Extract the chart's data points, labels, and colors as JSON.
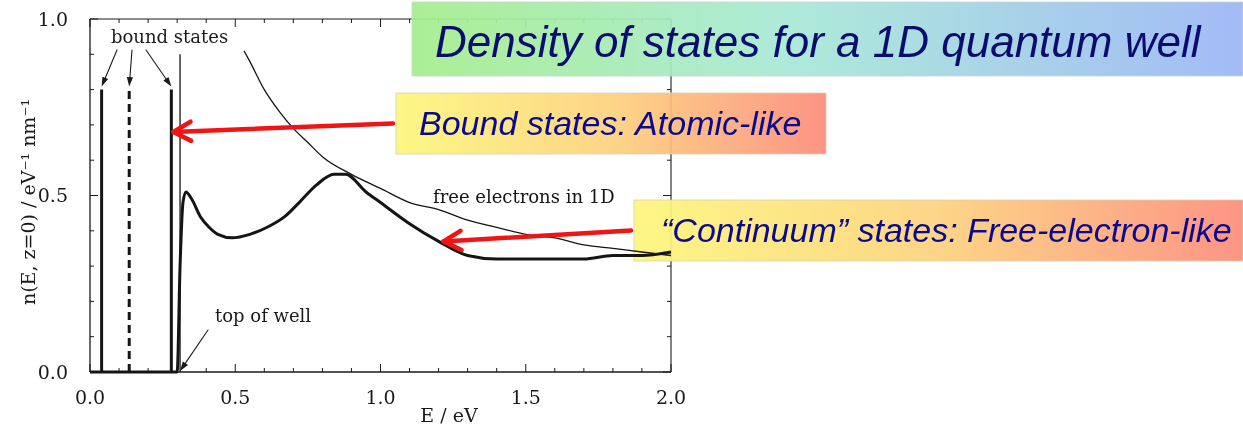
{
  "chart_data": {
    "type": "line",
    "title": "Density of states for a 1D quantum well",
    "xlabel": "E / eV",
    "ylabel": "n(E, z=0) / eV⁻¹ nm⁻¹",
    "xlim": [
      0,
      2
    ],
    "ylim": [
      0,
      1
    ],
    "xticks": [
      {
        "value": 0,
        "label": "0.0"
      },
      {
        "value": 0.1,
        "label": null
      },
      {
        "value": 0.2,
        "label": null
      },
      {
        "value": 0.3,
        "label": null
      },
      {
        "value": 0.4,
        "label": null
      },
      {
        "value": 0.5,
        "label": "0.5"
      },
      {
        "value": 0.6,
        "label": null
      },
      {
        "value": 0.7,
        "label": null
      },
      {
        "value": 0.8,
        "label": null
      },
      {
        "value": 0.9,
        "label": null
      },
      {
        "value": 1,
        "label": "1.0"
      },
      {
        "value": 1.1,
        "label": null
      },
      {
        "value": 1.2,
        "label": null
      },
      {
        "value": 1.3,
        "label": null
      },
      {
        "value": 1.4,
        "label": null
      },
      {
        "value": 1.5,
        "label": "1.5"
      },
      {
        "value": 1.6,
        "label": null
      },
      {
        "value": 1.7,
        "label": null
      },
      {
        "value": 1.8,
        "label": null
      },
      {
        "value": 1.9,
        "label": null
      },
      {
        "value": 2,
        "label": "2.0"
      }
    ],
    "yticks": [
      {
        "value": 0,
        "label": "0.0"
      },
      {
        "value": 0.1,
        "label": null
      },
      {
        "value": 0.2,
        "label": null
      },
      {
        "value": 0.3,
        "label": null
      },
      {
        "value": 0.4,
        "label": null
      },
      {
        "value": 0.5,
        "label": "0.5"
      },
      {
        "value": 0.6,
        "label": null
      },
      {
        "value": 0.7,
        "label": null
      },
      {
        "value": 0.8,
        "label": null
      },
      {
        "value": 0.9,
        "label": null
      },
      {
        "value": 1,
        "label": "1.0"
      }
    ],
    "series": [
      {
        "color": "#151515",
        "x": [
          0,
          0.3,
          0.31,
          0.32,
          0.33,
          0.35,
          0.38,
          0.41,
          0.44,
          0.49,
          0.55,
          0.61,
          0.67,
          0.72,
          0.78,
          0.84,
          0.88,
          0.95,
          1.0,
          1.1,
          1.2,
          1.3,
          1.4,
          1.5,
          1.6,
          1.7,
          1.8,
          1.9,
          2.0
        ],
        "values": [
          0,
          0,
          0.3,
          0.48,
          0.51,
          0.49,
          0.44,
          0.41,
          0.39,
          0.38,
          0.39,
          0.41,
          0.44,
          0.48,
          0.53,
          0.56,
          0.56,
          0.51,
          0.48,
          0.42,
          0.37,
          0.33,
          0.32,
          0.32,
          0.32,
          0.32,
          0.33,
          0.33,
          0.34
        ]
      },
      {
        "color": "#151515",
        "x": [
          0.04,
          0.04
        ],
        "values": [
          0,
          0.8
        ]
      },
      {
        "color": "#151515",
        "x": [
          0.135,
          0.135
        ],
        "values": [
          0,
          0.8
        ],
        "line_style": "dashed"
      },
      {
        "color": "#151515",
        "x": [
          0.28,
          0.28
        ],
        "values": [
          0,
          0.8
        ]
      },
      {
        "color": "#151515",
        "x": [
          0.31,
          0.31
        ],
        "values": [
          0,
          0.9
        ]
      },
      {
        "name": "free electrons in 1D",
        "color": "#151515",
        "x": [
          0.53,
          0.55,
          0.6,
          0.65,
          0.7,
          0.75,
          0.8,
          0.9,
          1.0,
          1.1,
          1.2,
          1.3,
          1.4,
          1.5,
          1.6,
          1.7,
          1.8,
          1.9,
          2.0
        ],
        "values": [
          0.91,
          0.88,
          0.8,
          0.74,
          0.69,
          0.65,
          0.61,
          0.56,
          0.52,
          0.48,
          0.46,
          0.43,
          0.41,
          0.39,
          0.38,
          0.36,
          0.35,
          0.34,
          0.33
        ]
      }
    ],
    "annotations": [
      "bound states",
      {
        "text": "top of well",
        "x": 0.31,
        "y": 0
      },
      {
        "text": "Bound states: Atomic-like",
        "x": 0.28,
        "y": 0.68
      },
      {
        "text": "“Continuum” states: Free-electron-like",
        "x": 1.21,
        "y": 0.37
      }
    ]
  }
}
